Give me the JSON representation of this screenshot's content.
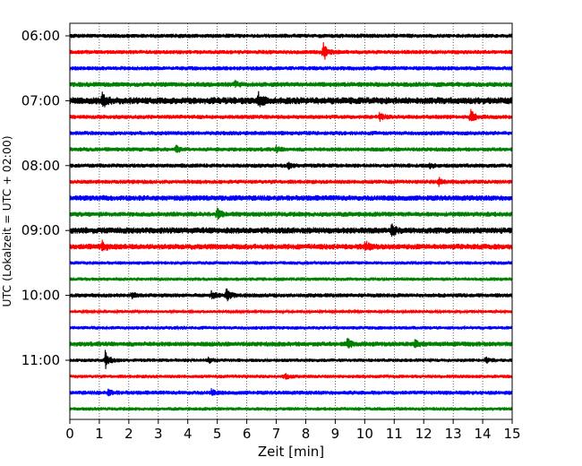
{
  "chart_data": {
    "type": "line",
    "subtype": "helicorder",
    "title": "",
    "xlabel": "Zeit  [min]",
    "ylabel": "UTC (Lokalzeit = UTC + 02:00)",
    "xlim": [
      0,
      15
    ],
    "x_ticks": [
      "0",
      "1",
      "2",
      "3",
      "4",
      "5",
      "6",
      "7",
      "8",
      "9",
      "10",
      "11",
      "12",
      "13",
      "14",
      "15"
    ],
    "y_tick_labels": [
      "06:00",
      "07:00",
      "08:00",
      "09:00",
      "10:00",
      "11:00"
    ],
    "grid": "vertical dotted at each minute",
    "minutes_per_line": 15,
    "colors": [
      "#000000",
      "#ff0000",
      "#0000ff",
      "#008000"
    ],
    "traces": [
      {
        "start": "06:00",
        "noise": 0.6,
        "events": []
      },
      {
        "start": "06:15",
        "noise": 0.6,
        "events": [
          {
            "min": 8.6,
            "amp": 2.4
          }
        ]
      },
      {
        "start": "06:30",
        "noise": 0.6,
        "events": []
      },
      {
        "start": "06:45",
        "noise": 0.7,
        "events": [
          {
            "min": 5.6,
            "amp": 0.7
          }
        ]
      },
      {
        "start": "07:00",
        "noise": 1.0,
        "events": [
          {
            "min": 1.1,
            "amp": 1.8
          },
          {
            "min": 6.4,
            "amp": 1.8
          }
        ]
      },
      {
        "start": "07:15",
        "noise": 0.6,
        "events": [
          {
            "min": 10.5,
            "amp": 1.0
          },
          {
            "min": 13.6,
            "amp": 1.8
          }
        ]
      },
      {
        "start": "07:30",
        "noise": 0.6,
        "events": []
      },
      {
        "start": "07:45",
        "noise": 0.6,
        "events": [
          {
            "min": 3.6,
            "amp": 0.9
          },
          {
            "min": 7.0,
            "amp": 0.7
          }
        ]
      },
      {
        "start": "08:00",
        "noise": 0.6,
        "events": [
          {
            "min": 7.4,
            "amp": 0.7
          },
          {
            "min": 12.2,
            "amp": 0.6
          }
        ]
      },
      {
        "start": "08:15",
        "noise": 0.6,
        "events": [
          {
            "min": 12.5,
            "amp": 1.1
          }
        ]
      },
      {
        "start": "08:30",
        "noise": 0.8,
        "events": []
      },
      {
        "start": "08:45",
        "noise": 0.7,
        "events": [
          {
            "min": 5.0,
            "amp": 1.4
          }
        ]
      },
      {
        "start": "09:00",
        "noise": 0.9,
        "events": [
          {
            "min": 10.9,
            "amp": 1.4
          }
        ]
      },
      {
        "start": "09:15",
        "noise": 0.8,
        "events": [
          {
            "min": 1.1,
            "amp": 1.2
          },
          {
            "min": 10.0,
            "amp": 1.5
          }
        ]
      },
      {
        "start": "09:30",
        "noise": 0.5,
        "events": []
      },
      {
        "start": "09:45",
        "noise": 0.5,
        "events": []
      },
      {
        "start": "10:00",
        "noise": 0.6,
        "events": [
          {
            "min": 2.1,
            "amp": 0.8
          },
          {
            "min": 4.8,
            "amp": 0.9
          },
          {
            "min": 5.3,
            "amp": 2.0
          }
        ]
      },
      {
        "start": "10:15",
        "noise": 0.4,
        "events": []
      },
      {
        "start": "10:30",
        "noise": 0.5,
        "events": []
      },
      {
        "start": "10:45",
        "noise": 0.7,
        "events": [
          {
            "min": 9.4,
            "amp": 1.5
          },
          {
            "min": 11.7,
            "amp": 1.0
          }
        ]
      },
      {
        "start": "11:00",
        "noise": 0.5,
        "events": [
          {
            "min": 1.2,
            "amp": 2.6
          },
          {
            "min": 4.7,
            "amp": 0.9
          },
          {
            "min": 14.1,
            "amp": 0.8
          }
        ]
      },
      {
        "start": "11:15",
        "noise": 0.5,
        "events": [
          {
            "min": 7.3,
            "amp": 0.7
          }
        ]
      },
      {
        "start": "11:30",
        "noise": 0.6,
        "events": [
          {
            "min": 1.3,
            "amp": 0.8
          },
          {
            "min": 4.8,
            "amp": 0.7
          }
        ]
      },
      {
        "start": "11:45",
        "noise": 0.5,
        "events": []
      }
    ]
  }
}
